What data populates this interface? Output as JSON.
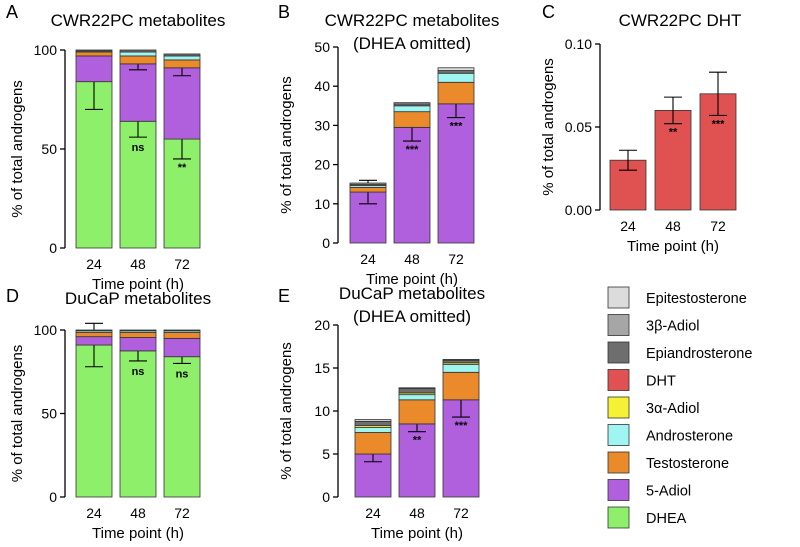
{
  "colors": {
    "Epitestosterone": "#dcdcdc",
    "3β-Adiol": "#a6a6a6",
    "Epiandrosterone": "#6e6e6e",
    "DHT": "#e05252",
    "3α-Adiol": "#f5f235",
    "Androsterone": "#9ff5f2",
    "Testosterone": "#ea8a2a",
    "5-Adiol": "#b060dc",
    "DHEA": "#8ef06a"
  },
  "legend": {
    "items": [
      "Epitestosterone",
      "3β-Adiol",
      "Epiandrosterone",
      "DHT",
      "3α-Adiol",
      "Androsterone",
      "Testosterone",
      "5-Adiol",
      "DHEA"
    ]
  },
  "chart_data": [
    {
      "panel": "A",
      "type": "bar",
      "stacked": true,
      "title": [
        "CWR22PC metabolites"
      ],
      "xlabel": "Time point (h)",
      "ylabel": "% of total androgens",
      "categories": [
        "24",
        "48",
        "72"
      ],
      "ylim": [
        0,
        100
      ],
      "yticks": [
        0,
        50,
        100
      ],
      "series": [
        {
          "name": "DHEA",
          "values": [
            84,
            64,
            55
          ],
          "err": [
            14,
            8,
            10
          ],
          "sig": [
            "",
            "ns",
            "**"
          ]
        },
        {
          "name": "5-Adiol",
          "values": [
            13,
            29,
            36
          ],
          "err": [
            0,
            3,
            4
          ]
        },
        {
          "name": "Testosterone",
          "values": [
            2,
            4,
            4
          ],
          "err": [
            0,
            0,
            0
          ]
        },
        {
          "name": "Androsterone",
          "values": [
            0.5,
            2,
            2
          ],
          "err": [
            0,
            0,
            0
          ]
        },
        {
          "name": "Epiandrosterone",
          "values": [
            0.5,
            1,
            1
          ],
          "err": [
            0,
            0,
            0
          ]
        }
      ]
    },
    {
      "panel": "B",
      "type": "bar",
      "stacked": true,
      "title": [
        "CWR22PC metabolites",
        "(DHEA omitted)"
      ],
      "xlabel": "Time point (h)",
      "ylabel": "% of total androgens",
      "categories": [
        "24",
        "48",
        "72"
      ],
      "ylim": [
        0,
        50
      ],
      "yticks": [
        0,
        10,
        20,
        30,
        40,
        50
      ],
      "series": [
        {
          "name": "5-Adiol",
          "values": [
            13,
            29.5,
            35.5
          ],
          "err": [
            3,
            3.5,
            3.5
          ],
          "sig": [
            "",
            "***",
            "***"
          ]
        },
        {
          "name": "Testosterone",
          "values": [
            1.2,
            4,
            5.5
          ],
          "err": [
            0,
            0,
            0
          ]
        },
        {
          "name": "Androsterone",
          "values": [
            0.5,
            1.5,
            2.3
          ],
          "err": [
            0,
            0,
            0
          ]
        },
        {
          "name": "Epiandrosterone",
          "values": [
            0.3,
            0.5,
            0.7
          ],
          "err": [
            0,
            0,
            0
          ]
        },
        {
          "name": "Epitestosterone",
          "values": [
            0.3,
            0.3,
            0.7
          ],
          "err": [
            0,
            0,
            0
          ]
        }
      ]
    },
    {
      "panel": "C",
      "type": "bar",
      "stacked": false,
      "title": [
        "CWR22PC DHT"
      ],
      "xlabel": "Time point (h)",
      "ylabel": "% of total androgens",
      "categories": [
        "24",
        "48",
        "72"
      ],
      "ylim": [
        0,
        0.1
      ],
      "yticks": [
        0,
        0.05,
        0.1
      ],
      "ytick_labels": [
        "0.00",
        "0.05",
        "0.10"
      ],
      "series": [
        {
          "name": "DHT",
          "values": [
            0.03,
            0.06,
            0.07
          ],
          "err": [
            0.006,
            0.008,
            0.013
          ],
          "sig": [
            "",
            "**",
            "***"
          ]
        }
      ]
    },
    {
      "panel": "D",
      "type": "bar",
      "stacked": true,
      "title": [
        "DuCaP metabolites"
      ],
      "xlabel": "Time point (h)",
      "ylabel": "% of total androgens",
      "categories": [
        "24",
        "48",
        "72"
      ],
      "ylim": [
        0,
        100
      ],
      "yticks": [
        0,
        50,
        100
      ],
      "series": [
        {
          "name": "DHEA",
          "values": [
            91,
            87.5,
            84
          ],
          "err": [
            13,
            6,
            4
          ],
          "sig": [
            "",
            "ns",
            "ns"
          ]
        },
        {
          "name": "5-Adiol",
          "values": [
            5,
            8,
            11
          ],
          "err": [
            0,
            0,
            0
          ]
        },
        {
          "name": "Testosterone",
          "values": [
            2.5,
            3,
            3.5
          ],
          "err": [
            0,
            0,
            0
          ]
        },
        {
          "name": "Androsterone",
          "values": [
            1,
            1,
            1
          ],
          "err": [
            0,
            0,
            0
          ]
        },
        {
          "name": "Epiandrosterone",
          "values": [
            0.5,
            0.5,
            0.5
          ],
          "err": [
            0,
            0,
            0
          ]
        }
      ]
    },
    {
      "panel": "E",
      "type": "bar",
      "stacked": true,
      "title": [
        "DuCaP metabolites",
        "(DHEA omitted)"
      ],
      "xlabel": "Time point (h)",
      "ylabel": "% of total androgens",
      "categories": [
        "24",
        "48",
        "72"
      ],
      "ylim": [
        0,
        20
      ],
      "yticks": [
        0,
        5,
        10,
        15,
        20
      ],
      "series": [
        {
          "name": "5-Adiol",
          "values": [
            5,
            8.5,
            11.3
          ],
          "err": [
            0.9,
            0.9,
            2
          ],
          "sig": [
            "",
            "**",
            "***"
          ]
        },
        {
          "name": "Testosterone",
          "values": [
            2.5,
            2.8,
            3.2
          ],
          "err": [
            0,
            0,
            0
          ]
        },
        {
          "name": "Androsterone",
          "values": [
            0.6,
            0.6,
            0.9
          ],
          "err": [
            0,
            0,
            0
          ]
        },
        {
          "name": "3α-Adiol",
          "values": [
            0.2,
            0.2,
            0.2
          ],
          "err": [
            0,
            0,
            0
          ]
        },
        {
          "name": "Epiandrosterone",
          "values": [
            0.5,
            0.5,
            0.3
          ],
          "err": [
            0,
            0,
            0
          ]
        },
        {
          "name": "Epitestosterone",
          "values": [
            0.2,
            0.1,
            0.1
          ],
          "err": [
            0,
            0,
            0
          ]
        }
      ]
    }
  ]
}
